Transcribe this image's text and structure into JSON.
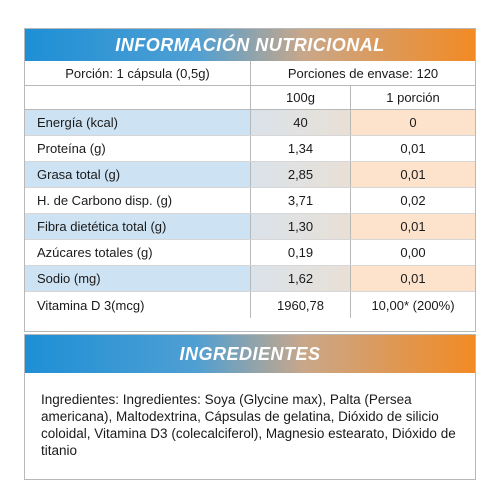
{
  "nutrition": {
    "title": "INFORMACIÓN NUTRICIONAL",
    "serving_size": "Porción: 1 cápsula (0,5g)",
    "servings_per_container": "Porciones de envase: 120",
    "col_100g": "100g",
    "col_portion": "1 porción",
    "rows": [
      {
        "label": "Energía (kcal)",
        "per100g": "40",
        "perPortion": "0"
      },
      {
        "label": "Proteína (g)",
        "per100g": "1,34",
        "perPortion": "0,01"
      },
      {
        "label": "Grasa total (g)",
        "per100g": "2,85",
        "perPortion": "0,01"
      },
      {
        "label": "H. de Carbono disp. (g)",
        "per100g": "3,71",
        "perPortion": "0,02"
      },
      {
        "label": "Fibra dietética total (g)",
        "per100g": "1,30",
        "perPortion": "0,01"
      },
      {
        "label": "Azúcares totales (g)",
        "per100g": "0,19",
        "perPortion": "0,00"
      },
      {
        "label": "Sodio (mg)",
        "per100g": "1,62",
        "perPortion": "0,01"
      },
      {
        "label": "Vitamina D 3(mcg)",
        "per100g": "1960,78",
        "perPortion": "10,00* (200%)"
      }
    ]
  },
  "ingredients": {
    "title": "INGREDIENTES",
    "text": "Ingredientes: Ingredientes: Soya (Glycine max), Palta (Persea americana), Maltodextrina, Cápsulas de gelatina, Dióxido de silicio coloidal, Vitamina D3 (colecalciferol), Magnesio estearato, Dióxido de titanio"
  },
  "colors": {
    "banner_blue": "#1e8fd6",
    "banner_orange": "#f28a24",
    "row_blue": "#cde2f2",
    "row_peach": "#fde3cc"
  }
}
